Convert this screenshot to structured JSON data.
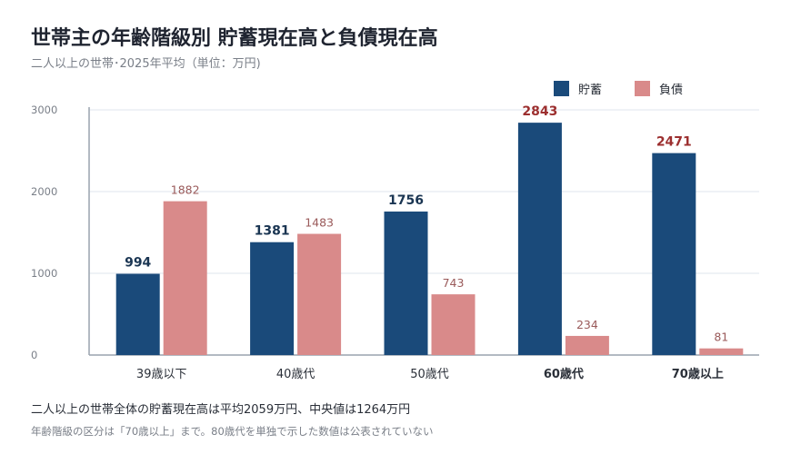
{
  "title": "世帯主の年齢階級別 貯蓄現在高と負債現在高",
  "subtitle": "二人以上の世帯･2025年平均（単位：万円)",
  "footnote_main": "二人以上の世帯全体の貯蓄現在高は平均2059万円、中央値は1264万円",
  "footnote_note": "年齢階級の区分は「70歳以上」まで。80歳代を単独で示した数値は公表されていない",
  "chart_data": {
    "type": "bar",
    "categories": [
      "39歳以下",
      "40歳代",
      "50歳代",
      "60歳代",
      "70歳以上"
    ],
    "highlight_categories": [
      "60歳代",
      "70歳以上"
    ],
    "series": [
      {
        "name": "貯蓄",
        "color": "#1a4a7a",
        "values": [
          994,
          1381,
          1756,
          2843,
          2471
        ]
      },
      {
        "name": "負債",
        "color": "#d98a8a",
        "values": [
          1882,
          1483,
          743,
          234,
          81
        ]
      }
    ],
    "ylim": [
      0,
      3000
    ],
    "yticks": [
      0,
      1000,
      2000,
      3000
    ],
    "grid": true,
    "legend": "top-right",
    "colors": {
      "savings_label": "#1a3552",
      "savings_highlight_label": "#9c2f2f",
      "debt_label": "#9a5a5a"
    }
  }
}
